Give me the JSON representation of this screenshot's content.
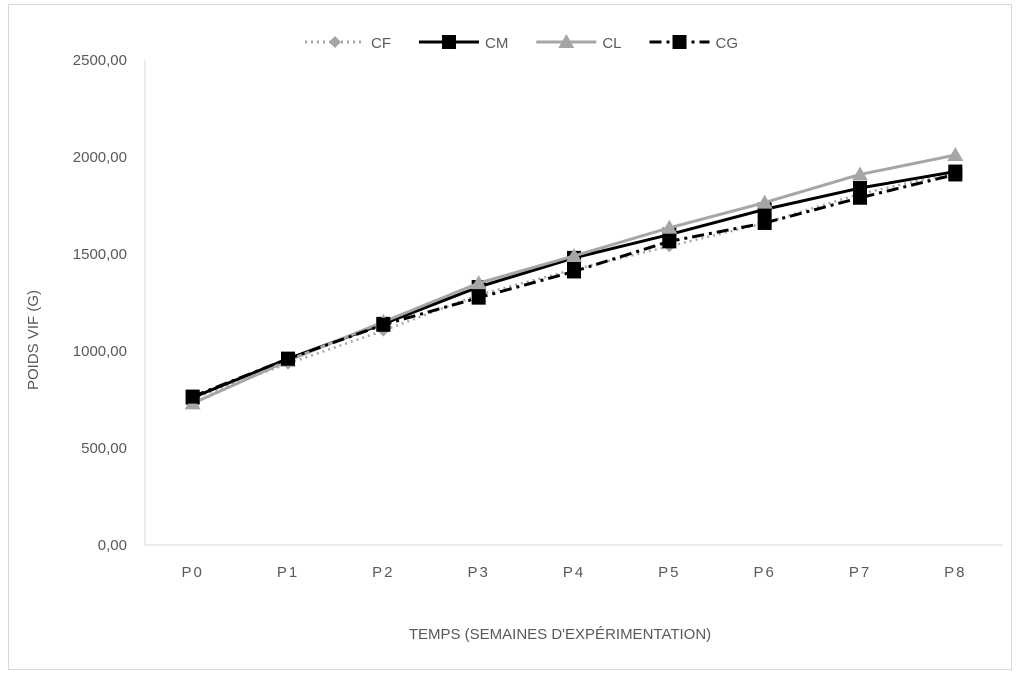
{
  "chart_data": {
    "type": "line",
    "title": "",
    "xlabel": "TEMPS (SEMAINES D'EXPÉRIMENTATION)",
    "ylabel": "POIDS VIF (G)",
    "categories": [
      "P0",
      "P1",
      "P2",
      "P3",
      "P4",
      "P5",
      "P6",
      "P7",
      "P8"
    ],
    "ylim": [
      0,
      2500
    ],
    "yticks": [
      "0,00",
      "500,00",
      "1000,00",
      "1500,00",
      "2000,00",
      "2500,00"
    ],
    "ytick_values": [
      0,
      500,
      1000,
      1500,
      2000,
      2500
    ],
    "grid": false,
    "legend": "top",
    "series": [
      {
        "name": "CF",
        "values": [
          755,
          935,
          1105,
          1290,
          1420,
          1540,
          1660,
          1810,
          1920
        ],
        "color": "#a6a6a6",
        "style": "dotted",
        "marker": "diamond"
      },
      {
        "name": "CM",
        "values": [
          760,
          960,
          1140,
          1330,
          1480,
          1600,
          1730,
          1840,
          1925
        ],
        "color": "#000000",
        "style": "solid",
        "marker": "square"
      },
      {
        "name": "CL",
        "values": [
          730,
          950,
          1150,
          1350,
          1490,
          1635,
          1765,
          1910,
          2010
        ],
        "color": "#a6a6a6",
        "style": "solid",
        "marker": "triangle"
      },
      {
        "name": "CG",
        "values": [
          765,
          960,
          1135,
          1275,
          1410,
          1565,
          1660,
          1790,
          1910
        ],
        "color": "#000000",
        "style": "dashdot",
        "marker": "square"
      }
    ]
  }
}
